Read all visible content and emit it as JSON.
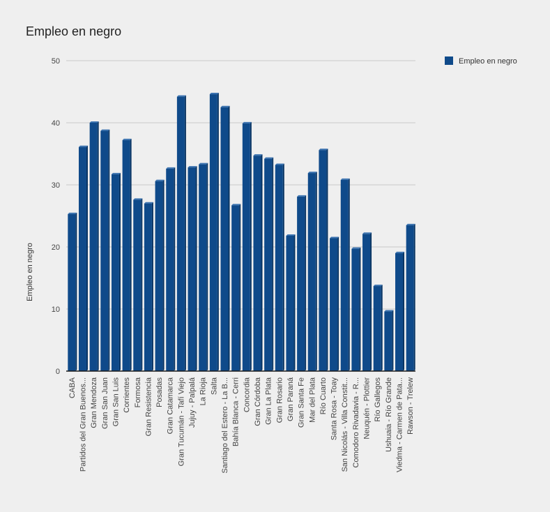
{
  "chart_data": {
    "type": "bar",
    "title": "Empleo en negro",
    "xlabel": "",
    "ylabel": "Empleo en negro",
    "ylim": [
      0,
      50
    ],
    "yticks": [
      0,
      10,
      20,
      30,
      40,
      50
    ],
    "grid": true,
    "legend_position": "top-right",
    "colors": {
      "bar_front": "#0f4a8a",
      "bar_top": "#3b73b0",
      "bar_side": "#083463",
      "grid": "#c8c8c8",
      "axis": "#1a1a1a",
      "legend_swatch": "#0f4a8a"
    },
    "categories": [
      "CABA",
      "Partidos del Gran Buenos...",
      "Gran Mendoza",
      "Gran San Juan",
      "Gran San Luis",
      "Corrientes",
      "Formosa",
      "Gran Resistencia",
      "Posadas",
      "Gran Catamarca",
      "Gran Tucumán - Tafí Viejo",
      "Jujuy - Palpalá",
      "La Rioja",
      "Salta",
      "Santiago del Estero - La B...",
      "Bahía Blanca - Cerri",
      "Concordia",
      "Gran Córdoba",
      "Gran La Plata",
      "Gran Rosario",
      "Gran Paraná",
      "Gran Santa Fe",
      "Mar del Plata",
      "Río Cuarto",
      "Santa Rosa - Toay",
      "San Nicolás - Villa Constit...",
      "Comodoro Rivadavia - R...",
      "Neuquén - Plottier",
      "Río Gallegos",
      "Ushuaia - Río Grande",
      "Viedma - Carmen de Pata...",
      "Rawson - Trelew"
    ],
    "series": [
      {
        "name": "Empleo en negro",
        "values": [
          25.3,
          36.1,
          40.0,
          38.7,
          31.7,
          37.2,
          27.6,
          27.0,
          30.6,
          32.6,
          44.2,
          32.8,
          33.3,
          44.6,
          42.5,
          26.7,
          39.9,
          34.7,
          34.2,
          33.2,
          21.8,
          28.1,
          31.9,
          35.6,
          21.4,
          30.8,
          19.7,
          22.1,
          13.7,
          9.6,
          19.0,
          23.5
        ]
      }
    ]
  }
}
